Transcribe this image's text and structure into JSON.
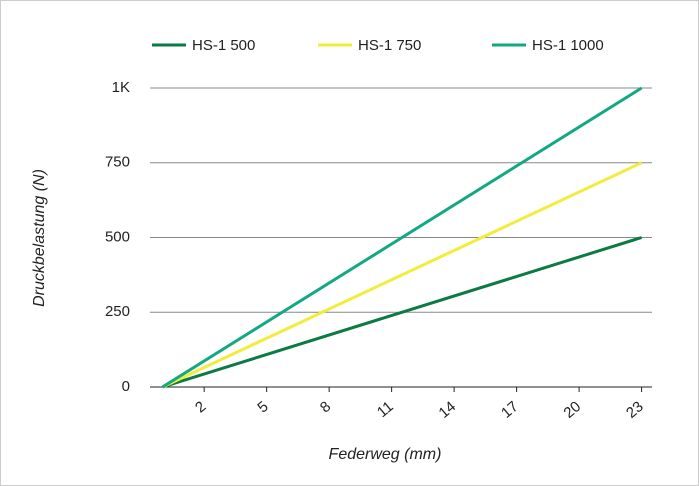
{
  "chart_data": {
    "type": "line",
    "x": [
      0,
      23
    ],
    "series": [
      {
        "name": "HS-1 500",
        "color": "#0b7a45",
        "values": [
          0,
          500
        ]
      },
      {
        "name": "HS-1 750",
        "color": "#f2ec3c",
        "values": [
          0,
          750
        ]
      },
      {
        "name": "HS-1 1000",
        "color": "#12a882",
        "values": [
          0,
          1000
        ]
      }
    ],
    "xlabel": "Federweg (mm)",
    "ylabel": "Druckbelastung (N)",
    "xlim": [
      -0.6,
      23.5
    ],
    "xticks": [
      2,
      5,
      8,
      11,
      14,
      17,
      20,
      23
    ],
    "ylim": [
      0,
      1000
    ],
    "yticks": [
      0,
      250,
      500,
      750,
      {
        "value": 1000,
        "label": "1K"
      }
    ],
    "grid": true,
    "legend": "top"
  }
}
